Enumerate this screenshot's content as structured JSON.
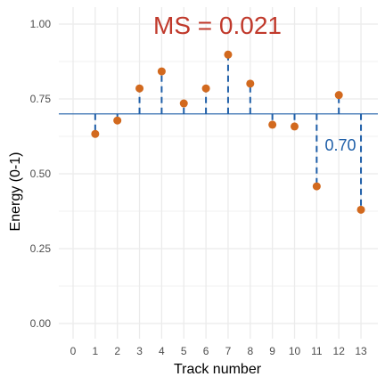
{
  "chart_data": {
    "type": "scatter",
    "xlabel": "Track number",
    "ylabel": "Energy (0-1)",
    "xlim": [
      0,
      13
    ],
    "ylim": [
      0,
      1
    ],
    "x_ticks": [
      "0",
      "1",
      "2",
      "3",
      "4",
      "5",
      "6",
      "7",
      "8",
      "9",
      "10",
      "11",
      "12",
      "13"
    ],
    "y_ticks": [
      "0.00",
      "0.25",
      "0.50",
      "0.75",
      "1.00"
    ],
    "grid": true,
    "mean": 0.7,
    "points": [
      {
        "x": 1,
        "y": 0.633
      },
      {
        "x": 2,
        "y": 0.678
      },
      {
        "x": 3,
        "y": 0.785
      },
      {
        "x": 4,
        "y": 0.842
      },
      {
        "x": 5,
        "y": 0.735
      },
      {
        "x": 6,
        "y": 0.785
      },
      {
        "x": 7,
        "y": 0.898
      },
      {
        "x": 8,
        "y": 0.801
      },
      {
        "x": 9,
        "y": 0.664
      },
      {
        "x": 10,
        "y": 0.658
      },
      {
        "x": 11,
        "y": 0.458
      },
      {
        "x": 12,
        "y": 0.763
      },
      {
        "x": 13,
        "y": 0.38
      }
    ],
    "annotations": {
      "ms_label": "MS = 0.021",
      "mean_label": "0.70"
    },
    "colors": {
      "points": "#d2691e",
      "mean_line": "#1f5fa8",
      "residuals": "#1f5fa8",
      "ms_text": "#c0392b",
      "grid": "#ebebeb"
    }
  }
}
